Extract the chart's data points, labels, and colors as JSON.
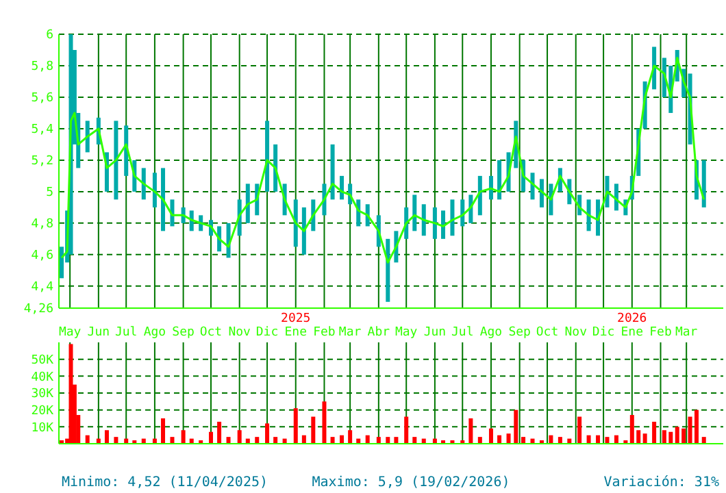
{
  "chart_data": [
    {
      "type": "line",
      "grid": true,
      "xlim": [
        "2024-04-19",
        "2026-04-10"
      ],
      "xticks": [
        {
          "value": "2024-05-01",
          "label": "May"
        },
        {
          "value": "2024-06-01",
          "label": "Jun"
        },
        {
          "value": "2024-07-01",
          "label": "Jul"
        },
        {
          "value": "2024-08-01",
          "label": "Ago"
        },
        {
          "value": "2024-09-01",
          "label": "Sep"
        },
        {
          "value": "2024-10-01",
          "label": "Oct"
        },
        {
          "value": "2024-11-01",
          "label": "Nov"
        },
        {
          "value": "2024-12-01",
          "label": "Dic"
        },
        {
          "value": "2025-01-01",
          "label": "Ene"
        },
        {
          "value": "2025-02-01",
          "label": "Feb"
        },
        {
          "value": "2025-03-01",
          "label": "Mar"
        },
        {
          "value": "2025-04-01",
          "label": "Abr"
        },
        {
          "value": "2025-05-01",
          "label": "May"
        },
        {
          "value": "2025-06-01",
          "label": "Jun"
        },
        {
          "value": "2025-07-01",
          "label": "Jul"
        },
        {
          "value": "2025-08-01",
          "label": "Ago"
        },
        {
          "value": "2025-09-01",
          "label": "Sep"
        },
        {
          "value": "2025-10-01",
          "label": "Oct"
        },
        {
          "value": "2025-11-01",
          "label": "Nov"
        },
        {
          "value": "2025-12-01",
          "label": "Dic"
        },
        {
          "value": "2026-01-01",
          "label": "Ene"
        },
        {
          "value": "2026-02-01",
          "label": "Feb"
        },
        {
          "value": "2026-03-01",
          "label": "Mar"
        }
      ],
      "x2lim": [
        "2024-04-19",
        "2026-04-10"
      ],
      "x2ticks": [
        {
          "value": "2025-01-01",
          "label": "2025"
        },
        {
          "value": "2026-01-01",
          "label": "2026"
        }
      ],
      "ylim": [
        4.26,
        6
      ],
      "yticks": [
        {
          "value": 4.26,
          "label": "4,26"
        },
        {
          "value": 4.4,
          "label": "4,4"
        },
        {
          "value": 4.6,
          "label": "4,6"
        },
        {
          "value": 4.8,
          "label": "4,8"
        },
        {
          "value": 5,
          "label": "5"
        },
        {
          "value": 5.2,
          "label": "5,2"
        },
        {
          "value": 5.4,
          "label": "5,4"
        },
        {
          "value": 5.6,
          "label": "5,6"
        },
        {
          "value": 5.8,
          "label": "5,8"
        },
        {
          "value": 6,
          "label": "6"
        }
      ],
      "x": [
        "2024-04-22",
        "2024-04-28",
        "2024-05-02",
        "2024-05-06",
        "2024-05-10",
        "2024-05-20",
        "2024-06-01",
        "2024-06-10",
        "2024-06-20",
        "2024-07-01",
        "2024-07-10",
        "2024-07-20",
        "2024-08-01",
        "2024-08-10",
        "2024-08-20",
        "2024-09-01",
        "2024-09-10",
        "2024-09-20",
        "2024-10-01",
        "2024-10-10",
        "2024-10-20",
        "2024-11-01",
        "2024-11-10",
        "2024-11-20",
        "2024-12-01",
        "2024-12-10",
        "2024-12-20",
        "2025-01-01",
        "2025-01-10",
        "2025-01-20",
        "2025-02-01",
        "2025-02-10",
        "2025-02-20",
        "2025-03-01",
        "2025-03-10",
        "2025-03-20",
        "2025-04-01",
        "2025-04-11",
        "2025-04-20",
        "2025-05-01",
        "2025-05-10",
        "2025-05-20",
        "2025-06-01",
        "2025-06-10",
        "2025-06-20",
        "2025-07-01",
        "2025-07-10",
        "2025-07-20",
        "2025-08-01",
        "2025-08-10",
        "2025-08-20",
        "2025-08-28",
        "2025-09-05",
        "2025-09-15",
        "2025-09-25",
        "2025-10-05",
        "2025-10-15",
        "2025-10-25",
        "2025-11-05",
        "2025-11-15",
        "2025-11-25",
        "2025-12-05",
        "2025-12-15",
        "2025-12-25",
        "2026-01-01",
        "2026-01-08",
        "2026-01-15",
        "2026-01-25",
        "2026-02-05",
        "2026-02-12",
        "2026-02-19",
        "2026-02-26",
        "2026-03-05",
        "2026-03-12",
        "2026-03-20"
      ],
      "series": [
        {
          "type": "bar",
          "color": "#00aaaa",
          "base": [
            4.45,
            4.55,
            4.6,
            5.3,
            5.15,
            5.25,
            5.3,
            5.0,
            4.95,
            5.1,
            5.0,
            4.95,
            4.9,
            4.75,
            4.78,
            4.8,
            4.75,
            4.75,
            4.72,
            4.62,
            4.58,
            4.72,
            4.8,
            4.85,
            5.0,
            5.0,
            4.85,
            4.65,
            4.6,
            4.75,
            4.85,
            4.95,
            4.95,
            4.92,
            4.78,
            4.78,
            4.65,
            4.3,
            4.55,
            4.7,
            4.75,
            4.72,
            4.7,
            4.7,
            4.72,
            4.78,
            4.8,
            4.85,
            4.95,
            4.95,
            5.0,
            5.15,
            5.0,
            4.95,
            4.9,
            4.85,
            5.0,
            4.92,
            4.85,
            4.75,
            4.72,
            4.9,
            4.88,
            4.85,
            4.95,
            5.1,
            5.4,
            5.65,
            5.6,
            5.5,
            5.7,
            5.6,
            5.3,
            4.95,
            4.9
          ],
          "values": [
            0.2,
            0.33,
            1.4,
            0.6,
            0.35,
            0.2,
            0.17,
            0.25,
            0.5,
            0.32,
            0.2,
            0.2,
            0.22,
            0.4,
            0.17,
            0.1,
            0.13,
            0.1,
            0.1,
            0.16,
            0.22,
            0.23,
            0.25,
            0.2,
            0.45,
            0.3,
            0.2,
            0.3,
            0.3,
            0.2,
            0.2,
            0.35,
            0.15,
            0.13,
            0.17,
            0.14,
            0.2,
            0.4,
            0.2,
            0.2,
            0.23,
            0.2,
            0.2,
            0.18,
            0.23,
            0.17,
            0.18,
            0.25,
            0.15,
            0.25,
            0.25,
            0.3,
            0.2,
            0.17,
            0.18,
            0.2,
            0.15,
            0.16,
            0.13,
            0.2,
            0.23,
            0.2,
            0.17,
            0.1,
            0.15,
            0.3,
            0.3,
            0.27,
            0.25,
            0.3,
            0.2,
            0.18,
            0.45,
            0.25,
            0.3
          ]
        },
        {
          "type": "line",
          "color": "#33ff00",
          "values": [
            4.58,
            4.62,
            5.45,
            5.5,
            5.3,
            5.35,
            5.4,
            5.15,
            5.2,
            5.3,
            5.1,
            5.05,
            5.0,
            4.95,
            4.85,
            4.85,
            4.82,
            4.8,
            4.78,
            4.7,
            4.65,
            4.85,
            4.92,
            4.95,
            5.2,
            5.15,
            4.95,
            4.8,
            4.75,
            4.85,
            4.95,
            5.05,
            5.0,
            4.98,
            4.88,
            4.85,
            4.75,
            4.55,
            4.65,
            4.8,
            4.85,
            4.82,
            4.8,
            4.78,
            4.82,
            4.85,
            4.9,
            5.0,
            5.02,
            5.0,
            5.1,
            5.35,
            5.1,
            5.05,
            5.0,
            4.95,
            5.1,
            5.0,
            4.9,
            4.85,
            4.82,
            5.0,
            4.95,
            4.9,
            5.0,
            5.3,
            5.6,
            5.8,
            5.75,
            5.6,
            5.85,
            5.7,
            5.6,
            5.1,
            4.95
          ]
        }
      ]
    },
    {
      "type": "bar",
      "grid": true,
      "tick_labels": "y",
      "xlim": [
        "2024-04-19",
        "2026-04-10"
      ],
      "xticks": [
        {
          "value": "2024-05-01",
          "label": null
        },
        {
          "value": "2024-06-01",
          "label": null
        },
        {
          "value": "2024-07-01",
          "label": null
        },
        {
          "value": "2024-08-01",
          "label": null
        },
        {
          "value": "2024-09-01",
          "label": null
        },
        {
          "value": "2024-10-01",
          "label": null
        },
        {
          "value": "2024-11-01",
          "label": null
        },
        {
          "value": "2024-12-01",
          "label": null
        },
        {
          "value": "2025-01-01",
          "label": null
        },
        {
          "value": "2025-02-01",
          "label": null
        },
        {
          "value": "2025-03-01",
          "label": null
        },
        {
          "value": "2025-04-01",
          "label": null
        },
        {
          "value": "2025-05-01",
          "label": null
        },
        {
          "value": "2025-06-01",
          "label": null
        },
        {
          "value": "2025-07-01",
          "label": null
        },
        {
          "value": "2025-08-01",
          "label": null
        },
        {
          "value": "2025-09-01",
          "label": null
        },
        {
          "value": "2025-10-01",
          "label": null
        },
        {
          "value": "2025-11-01",
          "label": null
        },
        {
          "value": "2025-12-01",
          "label": null
        },
        {
          "value": "2026-01-01",
          "label": null
        },
        {
          "value": "2026-02-01",
          "label": null
        },
        {
          "value": "2026-03-01",
          "label": null
        }
      ],
      "ylim": [
        0,
        60000
      ],
      "yticks": [
        {
          "value": 10000,
          "label": "10K"
        },
        {
          "value": 20000,
          "label": "20K"
        },
        {
          "value": 30000,
          "label": "30K"
        },
        {
          "value": 40000,
          "label": "40K"
        },
        {
          "value": 50000,
          "label": "50K"
        }
      ],
      "x": [
        "2024-04-22",
        "2024-04-28",
        "2024-05-02",
        "2024-05-06",
        "2024-05-10",
        "2024-05-20",
        "2024-06-01",
        "2024-06-10",
        "2024-06-20",
        "2024-07-01",
        "2024-07-10",
        "2024-07-20",
        "2024-08-01",
        "2024-08-10",
        "2024-08-20",
        "2024-09-01",
        "2024-09-10",
        "2024-09-20",
        "2024-10-01",
        "2024-10-10",
        "2024-10-20",
        "2024-11-01",
        "2024-11-10",
        "2024-11-20",
        "2024-12-01",
        "2024-12-10",
        "2024-12-20",
        "2025-01-01",
        "2025-01-10",
        "2025-01-20",
        "2025-02-01",
        "2025-02-10",
        "2025-02-20",
        "2025-03-01",
        "2025-03-10",
        "2025-03-20",
        "2025-04-01",
        "2025-04-11",
        "2025-04-20",
        "2025-05-01",
        "2025-05-10",
        "2025-05-20",
        "2025-06-01",
        "2025-06-10",
        "2025-06-20",
        "2025-07-01",
        "2025-07-10",
        "2025-07-20",
        "2025-08-01",
        "2025-08-10",
        "2025-08-20",
        "2025-08-28",
        "2025-09-05",
        "2025-09-15",
        "2025-09-25",
        "2025-10-05",
        "2025-10-15",
        "2025-10-25",
        "2025-11-05",
        "2025-11-15",
        "2025-11-25",
        "2025-12-05",
        "2025-12-15",
        "2025-12-25",
        "2026-01-01",
        "2026-01-08",
        "2026-01-15",
        "2026-01-25",
        "2026-02-05",
        "2026-02-12",
        "2026-02-19",
        "2026-02-26",
        "2026-03-05",
        "2026-03-12",
        "2026-03-20"
      ],
      "series": [
        {
          "color": "#ff0000",
          "values": [
            2000,
            3000,
            59000,
            35000,
            17000,
            5000,
            3000,
            8000,
            4000,
            3000,
            2000,
            3000,
            3000,
            15000,
            4000,
            8000,
            3000,
            2000,
            7000,
            13000,
            4000,
            8000,
            3000,
            4000,
            12000,
            4000,
            3000,
            21000,
            5000,
            16000,
            25000,
            4000,
            5000,
            8000,
            3000,
            5000,
            4000,
            4000,
            4000,
            16000,
            4000,
            3000,
            3000,
            2000,
            2000,
            2000,
            15000,
            4000,
            9000,
            5000,
            6000,
            20000,
            4000,
            3000,
            2000,
            5000,
            4000,
            3000,
            16000,
            5000,
            5000,
            4000,
            5000,
            2000,
            17000,
            8000,
            6000,
            13000,
            8000,
            7000,
            10000,
            9000,
            16000,
            20000,
            4000
          ]
        }
      ],
      "annotations": [
        "Minimo: 4,52 (11/04/2025)",
        "Maximo: 5,9 (19/02/2026)",
        "Variación: 31%"
      ]
    }
  ]
}
